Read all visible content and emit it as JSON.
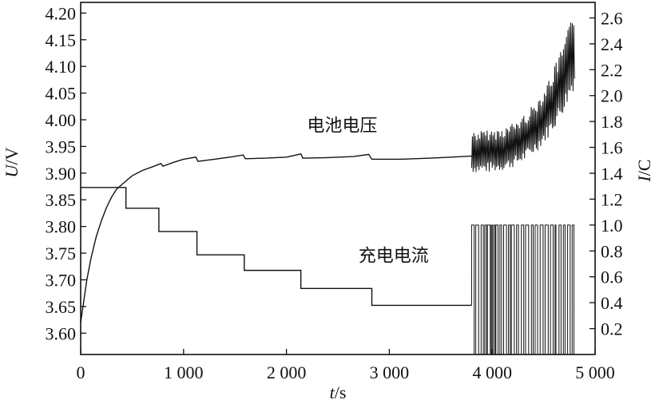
{
  "chart_data": {
    "type": "line",
    "x": {
      "label_var": "t",
      "label_unit": "/s",
      "lim": [
        0,
        5000
      ],
      "ticks": [
        0,
        1000,
        2000,
        3000,
        4000,
        5000
      ],
      "tick_labels": [
        "0",
        "1 000",
        "2 000",
        "3 000",
        "4 000",
        "5 000"
      ]
    },
    "y_left": {
      "label_var": "U",
      "label_unit": "/V",
      "lim": [
        3.56,
        4.22
      ],
      "ticks": [
        3.6,
        3.65,
        3.7,
        3.75,
        3.8,
        3.85,
        3.9,
        3.95,
        4.0,
        4.05,
        4.1,
        4.15,
        4.2
      ],
      "tick_labels": [
        "3.60",
        "3.65",
        "3.70",
        "3.75",
        "3.80",
        "3.85",
        "3.90",
        "3.95",
        "4.00",
        "4.05",
        "4.10",
        "4.15",
        "4.20"
      ]
    },
    "y_right": {
      "label_var": "I",
      "label_unit": "/C",
      "lim": [
        0,
        2.72
      ],
      "ticks": [
        0.2,
        0.4,
        0.6,
        0.8,
        1.0,
        1.2,
        1.4,
        1.6,
        1.8,
        2.0,
        2.2,
        2.4,
        2.6
      ],
      "tick_labels": [
        "0.2",
        "0.4",
        "0.6",
        "0.8",
        "1.0",
        "1.2",
        "1.4",
        "1.6",
        "1.8",
        "2.0",
        "2.2",
        "2.4",
        "2.6"
      ]
    },
    "series": [
      {
        "name": "电池电压",
        "axis": "left",
        "points": [
          [
            0,
            3.62
          ],
          [
            30,
            3.66
          ],
          [
            60,
            3.7
          ],
          [
            100,
            3.74
          ],
          [
            150,
            3.78
          ],
          [
            200,
            3.81
          ],
          [
            250,
            3.835
          ],
          [
            300,
            3.855
          ],
          [
            350,
            3.87
          ],
          [
            420,
            3.882
          ],
          [
            500,
            3.895
          ],
          [
            600,
            3.905
          ],
          [
            700,
            3.912
          ],
          [
            780,
            3.918
          ],
          [
            800,
            3.913
          ],
          [
            900,
            3.92
          ],
          [
            1000,
            3.926
          ],
          [
            1120,
            3.93
          ],
          [
            1140,
            3.922
          ],
          [
            1300,
            3.926
          ],
          [
            1450,
            3.93
          ],
          [
            1580,
            3.934
          ],
          [
            1600,
            3.927
          ],
          [
            1800,
            3.928
          ],
          [
            2000,
            3.93
          ],
          [
            2140,
            3.936
          ],
          [
            2160,
            3.928
          ],
          [
            2400,
            3.929
          ],
          [
            2650,
            3.931
          ],
          [
            2800,
            3.935
          ],
          [
            2830,
            3.926
          ],
          [
            3100,
            3.926
          ],
          [
            3400,
            3.928
          ],
          [
            3600,
            3.93
          ],
          [
            3800,
            3.932
          ]
        ]
      },
      {
        "name": "充电电流",
        "axis": "right",
        "points": [
          [
            0,
            1.29
          ],
          [
            440,
            1.29
          ],
          [
            440,
            1.13
          ],
          [
            760,
            1.13
          ],
          [
            760,
            0.95
          ],
          [
            1130,
            0.95
          ],
          [
            1130,
            0.77
          ],
          [
            1590,
            0.77
          ],
          [
            1590,
            0.65
          ],
          [
            2140,
            0.65
          ],
          [
            2140,
            0.51
          ],
          [
            2830,
            0.51
          ],
          [
            2830,
            0.38
          ],
          [
            3800,
            0.38
          ]
        ]
      }
    ],
    "burst_region": {
      "x_start": 3800,
      "x_end": 4800,
      "voltage_band_start": [
        3.9,
        3.98
      ],
      "voltage_band_end": [
        4.06,
        4.21
      ],
      "current_levels": [
        0.0,
        1.0
      ]
    },
    "annotations": [
      {
        "text": "电池电压",
        "x": 2200,
        "y": 3.978,
        "axis": "left"
      },
      {
        "text": "充电电流",
        "x": 2700,
        "y": 0.72,
        "axis": "right"
      }
    ]
  }
}
